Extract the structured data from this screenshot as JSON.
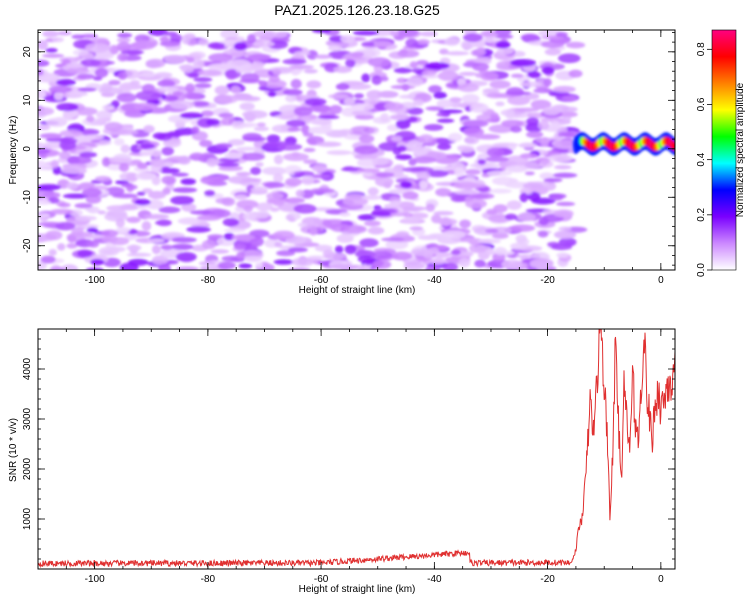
{
  "title": "PAZ1.2025.126.23.18.G25",
  "chart_data": [
    {
      "type": "heatmap",
      "xlabel": "Height of straight line (km)",
      "ylabel": "Frequency (Hz)",
      "xlim": [
        -110,
        2.5
      ],
      "ylim": [
        -25,
        24.5
      ],
      "xticks": [
        -100,
        -80,
        -60,
        -40,
        -20,
        0
      ],
      "yticks": [
        -20,
        -10,
        0,
        10,
        20
      ],
      "noise_region_x": [
        -110,
        -15
      ],
      "signal": {
        "x_start": -15,
        "x_end": 2.5,
        "center_frequency": 1,
        "peak_amplitude": 0.85
      },
      "colorbar": {
        "label": "Normalized spectral amplitude",
        "min": 0.0,
        "max": 0.87,
        "ticks": [
          0.0,
          0.2,
          0.4,
          0.6,
          0.8
        ],
        "colors": [
          "#ffffff",
          "#cc88ff",
          "#7a00ff",
          "#0000ff",
          "#00ffff",
          "#00ff00",
          "#ffff00",
          "#ff8000",
          "#ff0000",
          "#ff0080"
        ]
      }
    },
    {
      "type": "line",
      "xlabel": "Height of straight line (km)",
      "ylabel": "SNR (10 * v/v)",
      "xlim": [
        -110,
        2.5
      ],
      "ylim": [
        0,
        4800
      ],
      "xticks": [
        -100,
        -80,
        -60,
        -40,
        -20,
        0
      ],
      "yticks": [
        1000,
        2000,
        3000,
        4000
      ],
      "line_color": "#e03030",
      "series_points": [
        [
          -110,
          110
        ],
        [
          -60,
          120
        ],
        [
          -34,
          330
        ],
        [
          -34,
          120
        ],
        [
          -17,
          130
        ],
        [
          -16,
          120
        ],
        [
          -15.5,
          200
        ],
        [
          -15,
          400
        ],
        [
          -14.5,
          800
        ],
        [
          -14,
          1000
        ],
        [
          -13.5,
          1500
        ],
        [
          -13,
          2300
        ],
        [
          -12.5,
          3400
        ],
        [
          -12,
          2700
        ],
        [
          -11.5,
          3300
        ],
        [
          -11,
          4400
        ],
        [
          -10.5,
          4800
        ],
        [
          -10,
          3600
        ],
        [
          -9.5,
          2800
        ],
        [
          -9,
          1100
        ],
        [
          -8.5,
          2200
        ],
        [
          -8,
          4600
        ],
        [
          -7.5,
          3000
        ],
        [
          -7,
          1700
        ],
        [
          -6.5,
          3600
        ],
        [
          -6,
          2900
        ],
        [
          -5.5,
          2400
        ],
        [
          -5,
          3800
        ],
        [
          -4.5,
          3000
        ],
        [
          -4,
          2500
        ],
        [
          -3.5,
          3600
        ],
        [
          -3,
          4800
        ],
        [
          -2.5,
          3600
        ],
        [
          -2,
          3000
        ],
        [
          -1.5,
          2600
        ],
        [
          -1,
          3300
        ],
        [
          -0.5,
          3600
        ],
        [
          0,
          3200
        ],
        [
          0.5,
          3400
        ],
        [
          1,
          3600
        ],
        [
          1.5,
          3800
        ],
        [
          2,
          3700
        ],
        [
          2.5,
          3900
        ]
      ]
    }
  ]
}
